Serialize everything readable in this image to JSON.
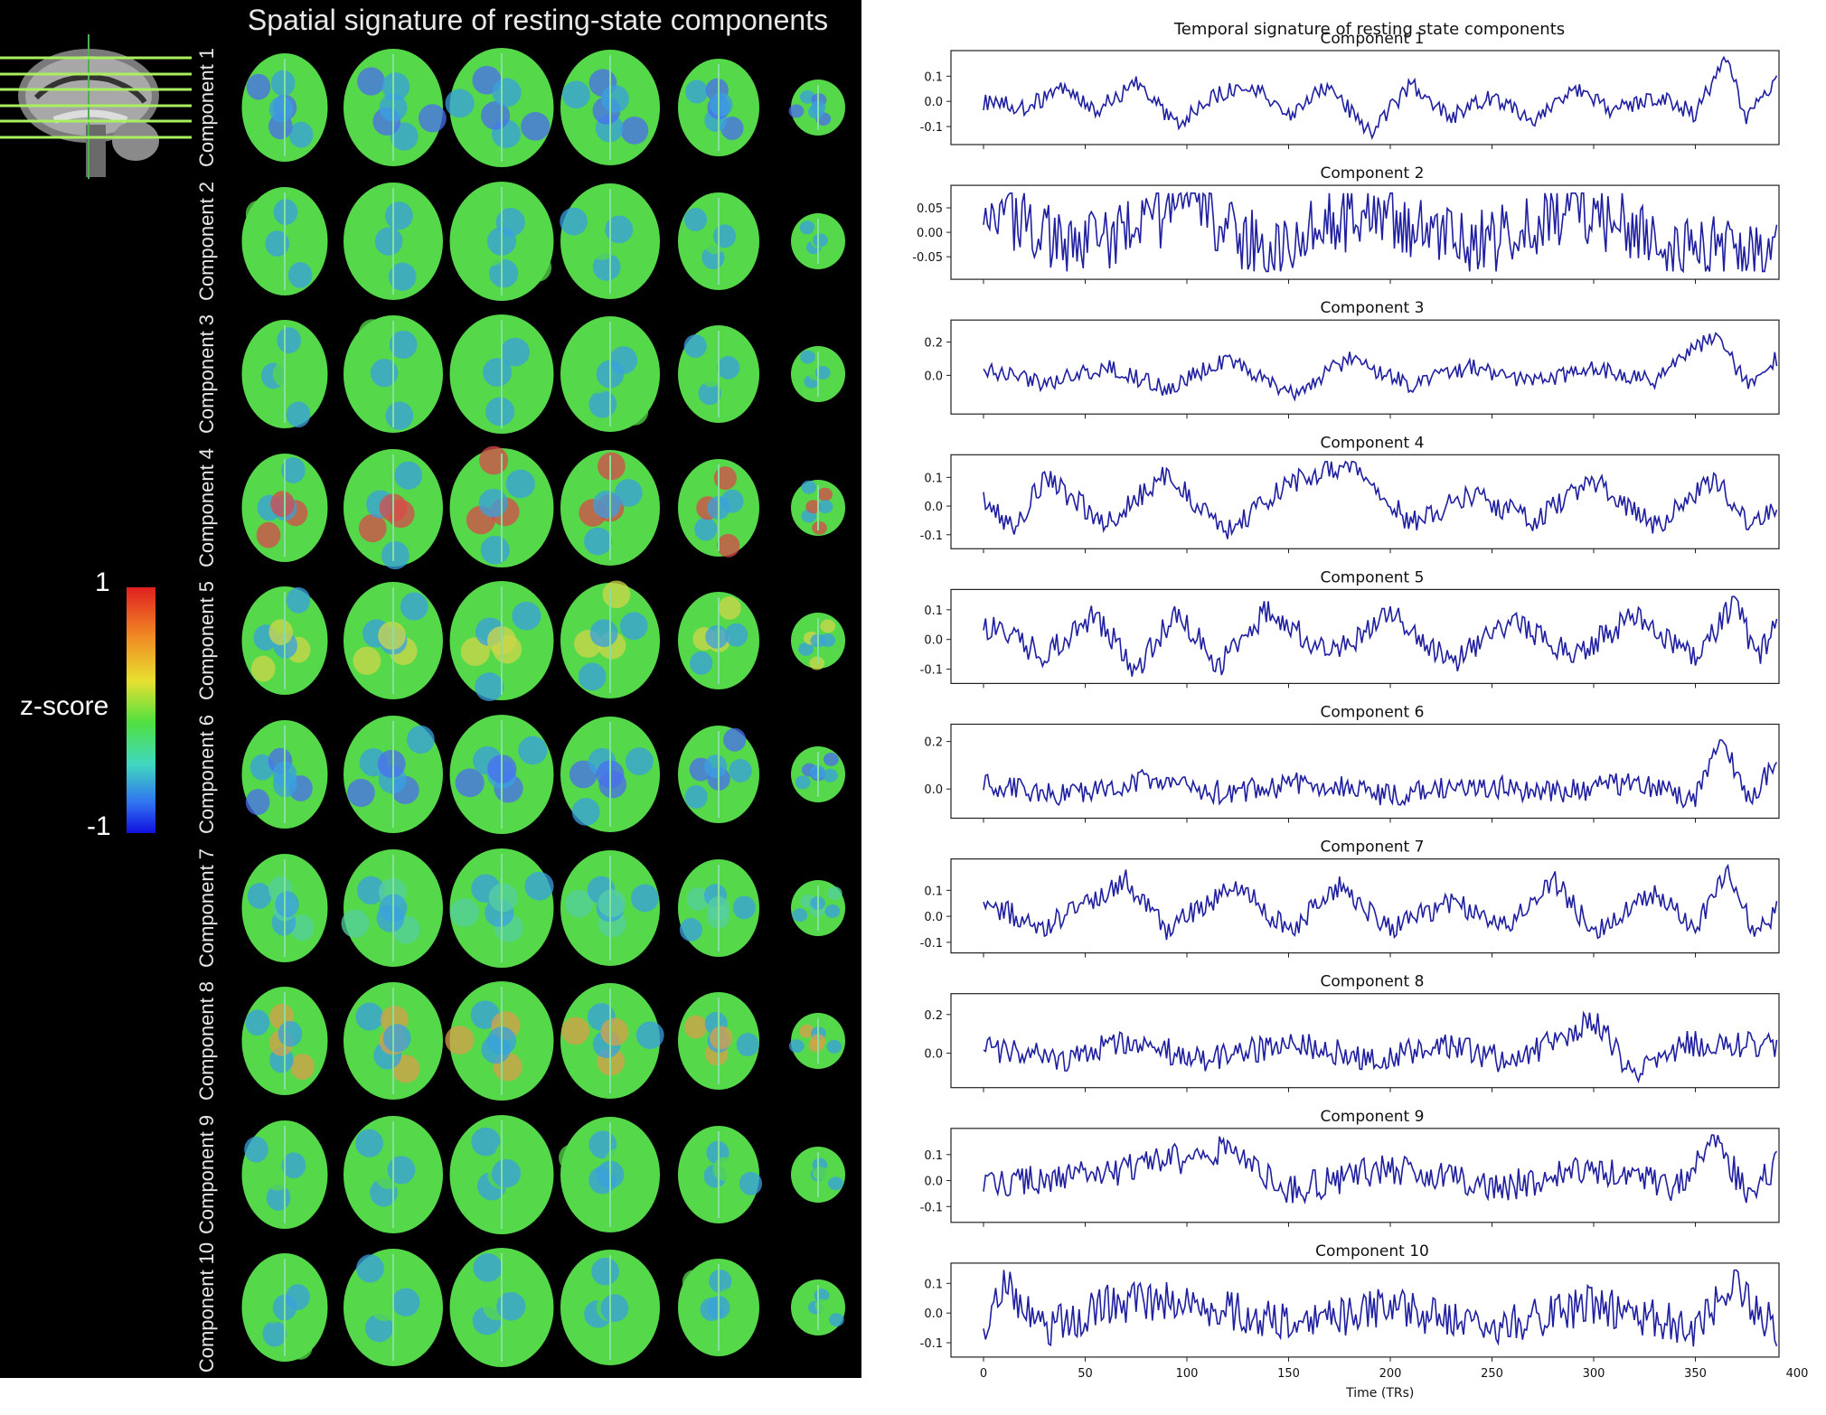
{
  "spatial_panel": {
    "title": "Spatial signature of resting-state components",
    "colorbar": {
      "label": "z-score",
      "max_label": "1",
      "min_label": "-1"
    },
    "components": [
      "Component 1",
      "Component 2",
      "Component 3",
      "Component 4",
      "Component 5",
      "Component 6",
      "Component 7",
      "Component 8",
      "Component 9",
      "Component 10"
    ],
    "dominant_colors": [
      "#4a6df0",
      "#55d84a",
      "#55d84a",
      "#d84a4a",
      "#cfd64a",
      "#4a6df0",
      "#55d0a0",
      "#d8a04a",
      "#55d84a",
      "#55d84a"
    ]
  },
  "temporal_panel": {
    "title": "Temporal signature of resting state components",
    "x_axis_label": "Time (TRs)",
    "x_ticks": [
      "0",
      "50",
      "100",
      "150",
      "200",
      "250",
      "300",
      "350",
      "400"
    ],
    "line_color": "#1f1fa0"
  },
  "chart_data": {
    "type": "line",
    "title": "Temporal signature of resting state components",
    "xlabel": "Time (TRs)",
    "xlim": [
      0,
      390
    ],
    "series": [
      {
        "name": "Component 1",
        "yticks": [
          "0.1",
          "0.0",
          "-0.1"
        ],
        "ylim": [
          -0.15,
          0.18
        ],
        "anchors": [
          0,
          0.0,
          20,
          -0.02,
          40,
          0.05,
          55,
          -0.04,
          75,
          0.07,
          95,
          -0.09,
          115,
          0.03,
          130,
          0.07,
          150,
          -0.05,
          170,
          0.06,
          190,
          -0.13,
          210,
          0.07,
          230,
          -0.06,
          250,
          0.02,
          270,
          -0.07,
          290,
          0.05,
          310,
          -0.04,
          330,
          0.02,
          350,
          -0.05,
          365,
          0.18,
          375,
          -0.07,
          390,
          0.07
        ],
        "amp": 0.035
      },
      {
        "name": "Component 2",
        "yticks": [
          "0.05",
          "0.00",
          "-0.05"
        ],
        "ylim": [
          -0.085,
          0.085
        ],
        "anchors": [
          0,
          0.05,
          50,
          -0.03,
          100,
          0.06,
          140,
          -0.04,
          190,
          0.05,
          240,
          -0.03,
          290,
          0.04,
          340,
          -0.02,
          390,
          -0.05
        ],
        "amp": 0.07
      },
      {
        "name": "Component 3",
        "yticks": [
          "0.2",
          "0.0"
        ],
        "ylim": [
          -0.2,
          0.3
        ],
        "anchors": [
          0,
          0.03,
          30,
          -0.05,
          60,
          0.05,
          90,
          -0.08,
          120,
          0.1,
          150,
          -0.12,
          180,
          0.1,
          210,
          -0.06,
          240,
          0.05,
          270,
          -0.04,
          300,
          0.04,
          330,
          -0.03,
          360,
          0.25,
          375,
          -0.05,
          390,
          0.1
        ],
        "amp": 0.05
      },
      {
        "name": "Component 4",
        "yticks": [
          "0.1",
          "0.0",
          "-0.1"
        ],
        "ylim": [
          -0.13,
          0.16
        ],
        "anchors": [
          0,
          0.03,
          15,
          -0.08,
          30,
          0.1,
          60,
          -0.06,
          90,
          0.11,
          120,
          -0.09,
          150,
          0.08,
          180,
          0.15,
          210,
          -0.06,
          240,
          0.04,
          270,
          -0.05,
          300,
          0.09,
          330,
          -0.07,
          360,
          0.1,
          375,
          -0.05,
          390,
          -0.02
        ],
        "amp": 0.04
      },
      {
        "name": "Component 5",
        "yticks": [
          "0.1",
          "0.0",
          "-0.1"
        ],
        "ylim": [
          -0.13,
          0.15
        ],
        "anchors": [
          0,
          0.05,
          30,
          -0.05,
          55,
          0.08,
          75,
          -0.11,
          95,
          0.1,
          115,
          -0.09,
          140,
          0.1,
          170,
          -0.06,
          200,
          0.09,
          230,
          -0.08,
          260,
          0.07,
          290,
          -0.06,
          320,
          0.08,
          350,
          -0.06,
          370,
          0.13,
          380,
          -0.08,
          390,
          0.07
        ],
        "amp": 0.045
      },
      {
        "name": "Component 6",
        "yticks": [
          "0.2",
          "0.0"
        ],
        "ylim": [
          -0.1,
          0.25
        ],
        "anchors": [
          0,
          0.02,
          40,
          -0.03,
          80,
          0.04,
          120,
          -0.02,
          160,
          0.03,
          200,
          -0.03,
          240,
          0.02,
          280,
          -0.02,
          320,
          0.03,
          350,
          -0.04,
          363,
          0.22,
          375,
          -0.05,
          390,
          0.11
        ],
        "amp": 0.05
      },
      {
        "name": "Component 7",
        "yticks": [
          "0.1",
          "0.0",
          "-0.1"
        ],
        "ylim": [
          -0.12,
          0.2
        ],
        "anchors": [
          0,
          0.05,
          30,
          -0.04,
          70,
          0.14,
          90,
          -0.05,
          125,
          0.12,
          150,
          -0.06,
          175,
          0.12,
          200,
          -0.05,
          230,
          0.06,
          255,
          -0.05,
          280,
          0.14,
          300,
          -0.06,
          330,
          0.08,
          350,
          -0.05,
          365,
          0.18,
          380,
          -0.08,
          390,
          0.02
        ],
        "amp": 0.045
      },
      {
        "name": "Component 8",
        "yticks": [
          "0.2",
          "0.0"
        ],
        "ylim": [
          -0.15,
          0.28
        ],
        "anchors": [
          0,
          0.02,
          40,
          -0.03,
          70,
          0.06,
          110,
          -0.04,
          150,
          0.06,
          190,
          -0.03,
          230,
          0.04,
          260,
          -0.05,
          300,
          0.18,
          320,
          -0.12,
          345,
          0.05,
          370,
          0.05,
          390,
          0.03
        ],
        "amp": 0.07
      },
      {
        "name": "Component 9",
        "yticks": [
          "0.1",
          "0.0",
          "-0.1"
        ],
        "ylim": [
          -0.14,
          0.18
        ],
        "anchors": [
          0,
          -0.02,
          60,
          0.03,
          120,
          0.12,
          150,
          -0.04,
          200,
          0.05,
          250,
          -0.03,
          300,
          0.04,
          340,
          -0.03,
          360,
          0.17,
          375,
          -0.05,
          390,
          0.06
        ],
        "amp": 0.06
      },
      {
        "name": "Component 10",
        "yticks": [
          "0.1",
          "0.0",
          "-0.1"
        ],
        "ylim": [
          -0.13,
          0.15
        ],
        "anchors": [
          0,
          -0.05,
          10,
          0.1,
          30,
          -0.06,
          60,
          0.03,
          100,
          0.04,
          150,
          -0.04,
          200,
          0.02,
          250,
          -0.05,
          300,
          0.03,
          350,
          -0.05,
          370,
          0.1,
          390,
          -0.06
        ],
        "amp": 0.07
      }
    ]
  }
}
